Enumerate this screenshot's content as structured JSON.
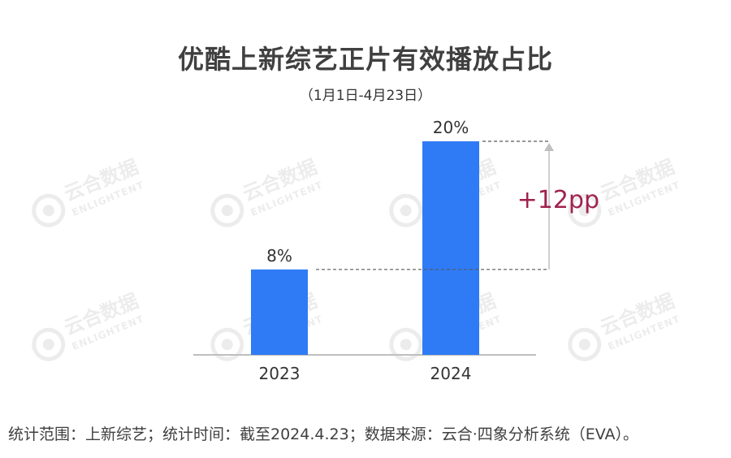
{
  "title": "优酷上新综艺正片有效播放占比",
  "subtitle": "（1月1日-4月23日）",
  "source": "统计范围：上新综艺；统计时间：截至2024.4.23；数据来源：云合·四象分析系统（EVA）。",
  "watermark": {
    "brand": "云合数据",
    "brand_en": "ENLIGHTENT"
  },
  "colors": {
    "bar": "#2f7bf5",
    "annotation": "#a0224f",
    "axis": "#bfbfbf",
    "guide": "#595959"
  },
  "chart_data": {
    "type": "bar",
    "categories": [
      "2023",
      "2024"
    ],
    "values": [
      8,
      20
    ],
    "value_labels": [
      "8%",
      "20%"
    ],
    "unit": "%",
    "ylim": [
      0,
      20
    ],
    "grid": false,
    "annotation": {
      "text": "+12pp",
      "from_value": 8,
      "to_value": 20
    }
  }
}
